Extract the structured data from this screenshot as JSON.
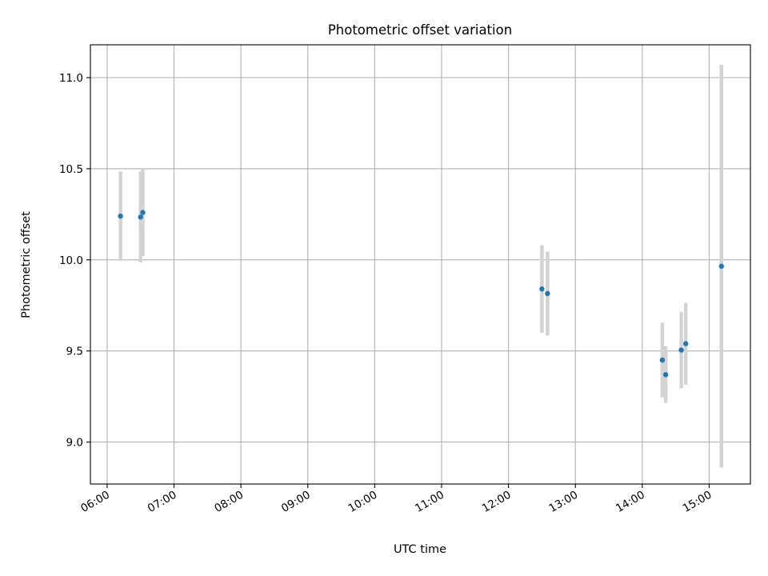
{
  "chart_data": {
    "type": "scatter",
    "title": "Photometric offset variation",
    "xlabel": "UTC time",
    "ylabel": "Photometric offset",
    "x_ticks": [
      "06:00",
      "07:00",
      "08:00",
      "09:00",
      "10:00",
      "11:00",
      "12:00",
      "13:00",
      "14:00",
      "15:00"
    ],
    "y_ticks": [
      "9.0",
      "9.5",
      "10.0",
      "10.5",
      "11.0"
    ],
    "xlim": [
      "05:45",
      "15:37"
    ],
    "ylim": [
      8.77,
      11.18
    ],
    "grid": true,
    "colors": {
      "point": "#1f77b4",
      "errorbar": "#d3d3d3",
      "grid": "#b0b0b0"
    },
    "points": [
      {
        "x": "06:12",
        "y": 10.24,
        "err": 0.245
      },
      {
        "x": "06:30",
        "y": 10.235,
        "err": 0.25
      },
      {
        "x": "06:32",
        "y": 10.26,
        "err": 0.24
      },
      {
        "x": "12:30",
        "y": 9.84,
        "err": 0.24
      },
      {
        "x": "12:35",
        "y": 9.815,
        "err": 0.23
      },
      {
        "x": "14:18",
        "y": 9.45,
        "err": 0.205
      },
      {
        "x": "14:21",
        "y": 9.37,
        "err": 0.155
      },
      {
        "x": "14:35",
        "y": 9.505,
        "err": 0.21
      },
      {
        "x": "14:39",
        "y": 9.54,
        "err": 0.225
      },
      {
        "x": "15:11",
        "y": 9.965,
        "err": 1.105
      }
    ]
  }
}
